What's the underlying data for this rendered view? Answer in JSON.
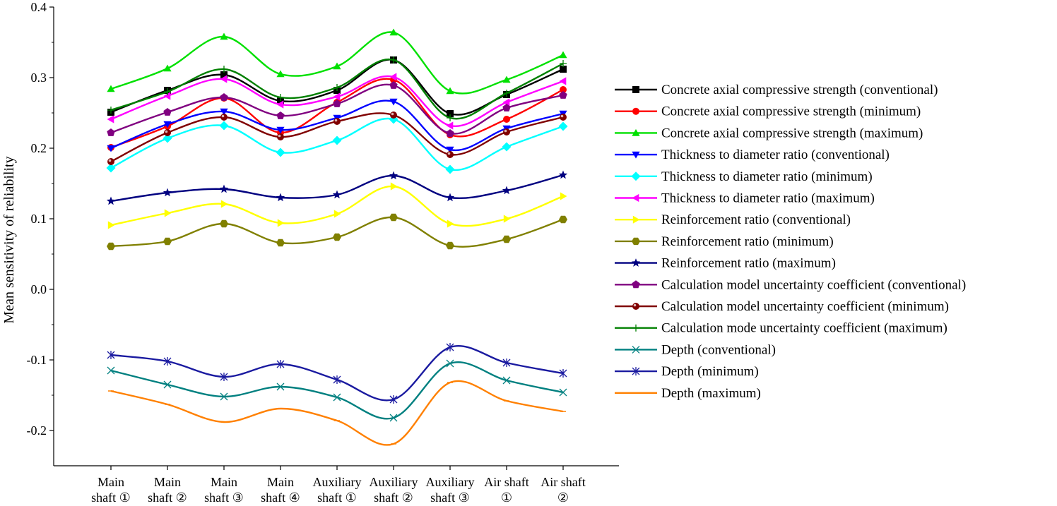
{
  "chart_data": {
    "type": "line",
    "title": "",
    "ylabel": "Mean sensitivity of reliability",
    "xlabel": "",
    "ylim": [
      -0.25,
      0.4
    ],
    "yticks": [
      "0.4",
      "0.3",
      "0.2",
      "0.1",
      "0.0",
      "-0.1",
      "-0.2"
    ],
    "ytick_values": [
      0.4,
      0.3,
      0.2,
      0.1,
      0.0,
      -0.1,
      -0.2
    ],
    "categories": [
      [
        "Main",
        "shaft ①"
      ],
      [
        "Main",
        "shaft ②"
      ],
      [
        "Main",
        "shaft ③"
      ],
      [
        "Main",
        "shaft ④"
      ],
      [
        "Auxiliary",
        "shaft ①"
      ],
      [
        "Auxiliary",
        "shaft ②"
      ],
      [
        "Auxiliary",
        "shaft ③"
      ],
      [
        "Air shaft",
        "①"
      ],
      [
        "Air shaft",
        "②"
      ]
    ],
    "legend_position": "right",
    "series": [
      {
        "name": "Concrete axial compressive strength (conventional)",
        "color": "#000000",
        "marker": "square",
        "values": [
          0.251,
          0.282,
          0.304,
          0.267,
          0.282,
          0.325,
          0.249,
          0.276,
          0.312
        ]
      },
      {
        "name": "Concrete axial compressive strength (minimum)",
        "color": "#ff0000",
        "marker": "circle",
        "values": [
          0.201,
          0.231,
          0.271,
          0.222,
          0.265,
          0.297,
          0.219,
          0.241,
          0.283
        ]
      },
      {
        "name": "Concrete axial compressive strength (maximum)",
        "color": "#00e000",
        "marker": "triangle-up",
        "values": [
          0.284,
          0.313,
          0.358,
          0.305,
          0.316,
          0.364,
          0.281,
          0.297,
          0.332
        ]
      },
      {
        "name": "Thickness to diameter ratio (conventional)",
        "color": "#0000ff",
        "marker": "triangle-down",
        "values": [
          0.2,
          0.234,
          0.252,
          0.226,
          0.243,
          0.266,
          0.198,
          0.228,
          0.249
        ]
      },
      {
        "name": "Thickness to diameter ratio (minimum)",
        "color": "#00ffff",
        "marker": "diamond",
        "values": [
          0.172,
          0.214,
          0.232,
          0.194,
          0.211,
          0.241,
          0.17,
          0.202,
          0.231
        ]
      },
      {
        "name": "Thickness to diameter ratio (maximum)",
        "color": "#ff00ff",
        "marker": "triangle-left",
        "values": [
          0.241,
          0.274,
          0.298,
          0.262,
          0.273,
          0.301,
          0.232,
          0.265,
          0.295
        ]
      },
      {
        "name": "Reinforcement ratio (conventional)",
        "color": "#ffff00",
        "marker": "triangle-right",
        "values": [
          0.091,
          0.108,
          0.121,
          0.094,
          0.107,
          0.146,
          0.093,
          0.1,
          0.132
        ]
      },
      {
        "name": "Reinforcement ratio (minimum)",
        "color": "#808000",
        "marker": "hexagon",
        "values": [
          0.061,
          0.068,
          0.093,
          0.066,
          0.074,
          0.102,
          0.062,
          0.071,
          0.099
        ]
      },
      {
        "name": "Reinforcement ratio (maximum)",
        "color": "#000080",
        "marker": "star",
        "values": [
          0.125,
          0.137,
          0.142,
          0.13,
          0.134,
          0.161,
          0.13,
          0.14,
          0.162
        ]
      },
      {
        "name": "Calculation model uncertainty coefficient (conventional)",
        "color": "#800080",
        "marker": "pentagon",
        "values": [
          0.222,
          0.251,
          0.272,
          0.246,
          0.263,
          0.289,
          0.221,
          0.257,
          0.275
        ]
      },
      {
        "name": "Calculation model uncertainty coefficient (minimum)",
        "color": "#800000",
        "marker": "circle-dot",
        "values": [
          0.181,
          0.222,
          0.244,
          0.216,
          0.238,
          0.247,
          0.191,
          0.223,
          0.244
        ]
      },
      {
        "name": "Calculation mode uncertainty coefficient (maximum)",
        "color": "#008000",
        "marker": "plus",
        "values": [
          0.254,
          0.28,
          0.312,
          0.272,
          0.286,
          0.325,
          0.243,
          0.278,
          0.32
        ]
      },
      {
        "name": "Depth (conventional)",
        "color": "#008080",
        "marker": "x",
        "values": [
          -0.115,
          -0.135,
          -0.152,
          -0.138,
          -0.153,
          -0.182,
          -0.105,
          -0.129,
          -0.146
        ]
      },
      {
        "name": "Depth (minimum)",
        "color": "#1a1aa0",
        "marker": "asterisk",
        "values": [
          -0.093,
          -0.102,
          -0.124,
          -0.106,
          -0.128,
          -0.156,
          -0.082,
          -0.104,
          -0.119
        ]
      },
      {
        "name": "Depth (maximum)",
        "color": "#ff8000",
        "marker": "dash",
        "values": [
          -0.144,
          -0.163,
          -0.188,
          -0.169,
          -0.186,
          -0.219,
          -0.132,
          -0.158,
          -0.173
        ]
      }
    ]
  }
}
